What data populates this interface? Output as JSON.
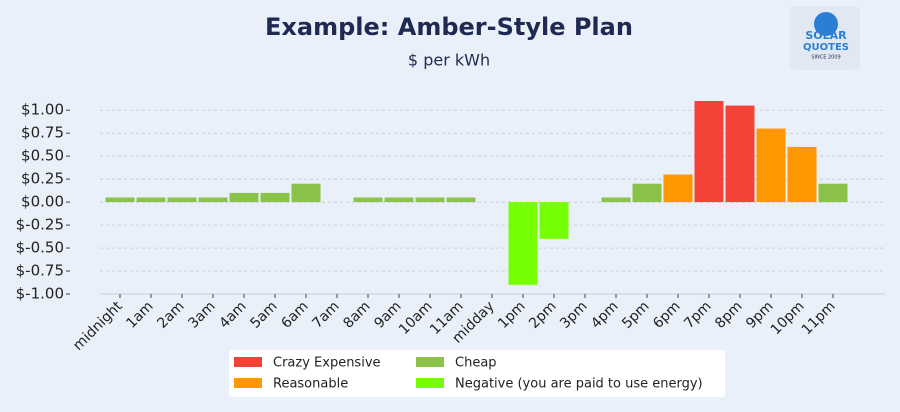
{
  "chart_data": {
    "type": "bar",
    "title": "Example: Amber-Style Plan",
    "subtitle": "$ per kWh",
    "logo": {
      "line1": "SOLAR",
      "line2": "QUOTES",
      "line3": "SINCE 2009"
    },
    "categories": [
      "midnight",
      "1am",
      "2am",
      "3am",
      "4am",
      "5am",
      "6am",
      "7am",
      "8am",
      "9am",
      "10am",
      "11am",
      "midday",
      "1pm",
      "2pm",
      "3pm",
      "4pm",
      "5pm",
      "6pm",
      "7pm",
      "8pm",
      "9pm",
      "10pm",
      "11pm"
    ],
    "values": [
      0.05,
      0.05,
      0.05,
      0.05,
      0.1,
      0.1,
      0.2,
      0,
      0.05,
      0.05,
      0.05,
      0.05,
      0,
      -0.9,
      -0.4,
      0,
      0.05,
      0.2,
      0.3,
      1.1,
      1.05,
      0.8,
      0.6,
      0.2
    ],
    "colors": [
      "#8bc34a",
      "#8bc34a",
      "#8bc34a",
      "#8bc34a",
      "#8bc34a",
      "#8bc34a",
      "#8bc34a",
      "#8bc34a",
      "#8bc34a",
      "#8bc34a",
      "#8bc34a",
      "#8bc34a",
      "#8bc34a",
      "#76ff03",
      "#76ff03",
      "#8bc34a",
      "#8bc34a",
      "#8bc34a",
      "#ff9800",
      "#f44336",
      "#f44336",
      "#ff9800",
      "#ff9800",
      "#8bc34a"
    ],
    "legend": [
      {
        "name": "Crazy Expensive",
        "color": "#f44336"
      },
      {
        "name": "Reasonable",
        "color": "#ff9800"
      },
      {
        "name": "Cheap",
        "color": "#8bc34a"
      },
      {
        "name": "Negative (you are paid to use energy)",
        "color": "#76ff03"
      }
    ],
    "ylim": [
      -1,
      1.1
    ],
    "yticks": [
      {
        "value": 1,
        "label": "$1.00"
      },
      {
        "value": 0.75,
        "label": "$0.75"
      },
      {
        "value": 0.5,
        "label": "$0.50"
      },
      {
        "value": 0.25,
        "label": "$0.25"
      },
      {
        "value": 0,
        "label": "$0.00"
      },
      {
        "value": -0.25,
        "label": "$-0.25"
      },
      {
        "value": -0.5,
        "label": "$-0.50"
      },
      {
        "value": -0.75,
        "label": "$-0.75"
      },
      {
        "value": -1,
        "label": "$-1.00"
      }
    ],
    "grid": true
  }
}
